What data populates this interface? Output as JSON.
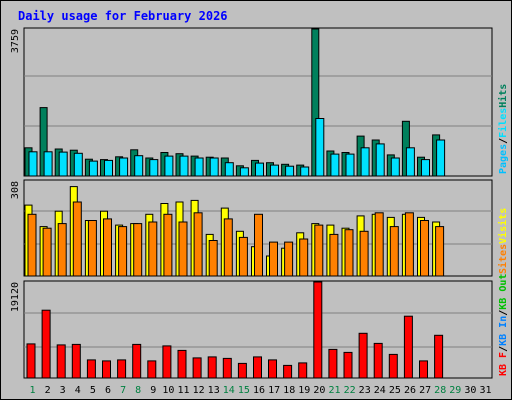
{
  "chart_data": {
    "type": "bar",
    "title": "Daily usage for February 2026",
    "days": [
      "1",
      "2",
      "3",
      "4",
      "5",
      "6",
      "7",
      "8",
      "9",
      "10",
      "11",
      "12",
      "13",
      "14",
      "15",
      "16",
      "17",
      "18",
      "19",
      "20",
      "21",
      "22",
      "23",
      "24",
      "25",
      "26",
      "27",
      "28",
      "29",
      "30",
      "31"
    ],
    "weekend_days": [
      1,
      7,
      8,
      14,
      15,
      21,
      22,
      28,
      29
    ],
    "panels": [
      {
        "max_label": "3759",
        "ymax": 3759,
        "series": [
          {
            "name": "Hits",
            "color": "#00805c",
            "values": [
              720,
              1750,
              690,
              660,
              430,
              420,
              490,
              670,
              460,
              600,
              570,
              510,
              480,
              460,
              260,
              400,
              340,
              300,
              280,
              3759,
              640,
              600,
              1020,
              920,
              540,
              1400,
              480,
              1050,
              null,
              null,
              null
            ]
          },
          {
            "name": "Files",
            "color": "#00e0ff",
            "values": [
              620,
              620,
              610,
              580,
              380,
              400,
              460,
              520,
              420,
              510,
              510,
              460,
              460,
              340,
              210,
              330,
              280,
              250,
              230,
              1470,
              560,
              560,
              720,
              820,
              460,
              720,
              420,
              920,
              null,
              null,
              null
            ]
          },
          {
            "name": "/",
            "color": "#000000",
            "values": []
          },
          {
            "name": "Pages",
            "color": "#00c0ff",
            "values": []
          }
        ]
      },
      {
        "max_label": "308",
        "ymax": 308,
        "series": [
          {
            "name": "Visits",
            "color": "#ffff00",
            "values": [
              230,
              160,
              210,
              290,
              180,
              210,
              165,
              170,
              200,
              235,
              240,
              245,
              135,
              220,
              145,
              95,
              65,
              90,
              140,
              170,
              165,
              155,
              195,
              200,
              190,
              200,
              190,
              175,
              null,
              null,
              null
            ]
          },
          {
            "name": "Sites",
            "color": "#ff8000",
            "values": [
              200,
              155,
              170,
              240,
              180,
              185,
              160,
              170,
              175,
              200,
              175,
              205,
              115,
              185,
              125,
              200,
              110,
              110,
              120,
              165,
              135,
              150,
              145,
              205,
              160,
              205,
              180,
              160,
              null,
              null,
              null
            ]
          }
        ]
      },
      {
        "max_label": "19120",
        "ymax": 19120,
        "series": [
          {
            "name": "KB Out",
            "color": "#00c000",
            "values": []
          },
          {
            "name": "/",
            "color": "#000000",
            "values": []
          },
          {
            "name": "KB In",
            "color": "#0080ff",
            "values": []
          },
          {
            "name": "/",
            "color": "#000000",
            "values": []
          },
          {
            "name": "KB F",
            "color": "#ff0000",
            "values": [
              6800,
              13500,
              6600,
              6700,
              3600,
              3400,
              3600,
              6700,
              3400,
              6400,
              5500,
              4000,
              4200,
              3900,
              2900,
              4200,
              3600,
              2500,
              3000,
              19120,
              5700,
              5100,
              8900,
              6900,
              4700,
              12300,
              3400,
              8500,
              null,
              null,
              null
            ]
          }
        ]
      }
    ],
    "colors": {
      "title": "#0000ff",
      "weekday_label": "#000000",
      "weekend_label": "#008040",
      "grid": "#808080",
      "background": "#c0c0c0"
    }
  }
}
